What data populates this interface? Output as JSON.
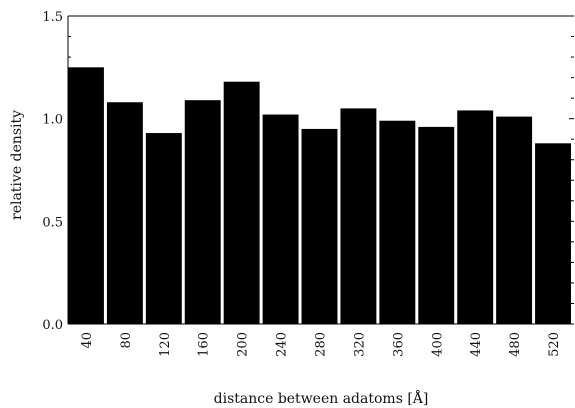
{
  "chart_data": {
    "type": "bar",
    "categories": [
      "40",
      "80",
      "120",
      "160",
      "200",
      "240",
      "280",
      "320",
      "360",
      "400",
      "440",
      "480",
      "520"
    ],
    "values": [
      1.25,
      1.08,
      0.93,
      1.09,
      1.18,
      1.02,
      0.95,
      1.05,
      0.99,
      0.96,
      1.04,
      1.01,
      0.88
    ],
    "xlabel": "distance between adatoms [Å]",
    "ylabel": "relative density",
    "ylim": [
      0,
      1.5
    ],
    "yticks": [
      "0.0",
      "0.5",
      "1.0",
      "1.5"
    ],
    "bar_color": "#000000",
    "grid": false,
    "legend": "none"
  }
}
